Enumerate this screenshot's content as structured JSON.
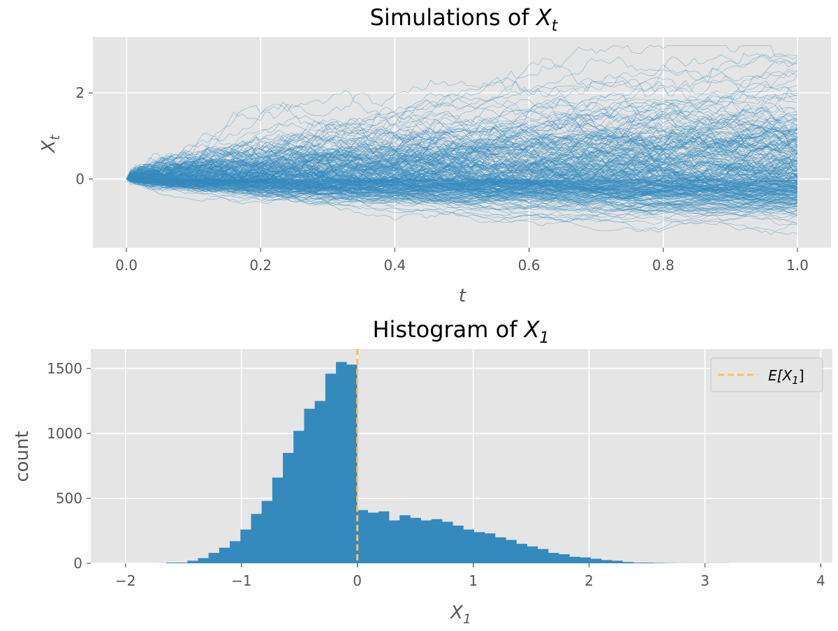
{
  "chart_data": [
    {
      "type": "line",
      "title_text": "Simulations of ",
      "title_var": "X",
      "title_sub": "t",
      "xlabel": "t",
      "ylabel_var": "X",
      "ylabel_sub": "t",
      "xlim": [
        -0.05,
        1.05
      ],
      "ylim": [
        -1.6,
        3.3
      ],
      "xticks": [
        "0.0",
        "0.2",
        "0.4",
        "0.6",
        "0.8",
        "1.0"
      ],
      "xtick_values": [
        0,
        0.2,
        0.4,
        0.6,
        0.8,
        1.0
      ],
      "yticks": [
        "0",
        "2"
      ],
      "ytick_values": [
        0,
        2
      ],
      "grid": true,
      "line_color": "#348ABD",
      "t_range": [
        0,
        1
      ],
      "y_start": 0,
      "y_end_range": [
        -1.4,
        3.1
      ]
    },
    {
      "type": "bar",
      "title_text": "Histogram of ",
      "title_var": "X",
      "title_sub": "1",
      "xlabel_var": "X",
      "xlabel_sub": "1",
      "ylabel": "count",
      "xlim": [
        -2.3,
        4.1
      ],
      "ylim": [
        0,
        1650
      ],
      "xticks": [
        "−2",
        "−1",
        "0",
        "1",
        "2",
        "3",
        "4"
      ],
      "xtick_values": [
        -2,
        -1,
        0,
        1,
        2,
        3,
        4
      ],
      "yticks": [
        "0",
        "500",
        "1000",
        "1500"
      ],
      "ytick_values": [
        0,
        500,
        1000,
        1500
      ],
      "grid": true,
      "bar_color": "#348ABD",
      "bin_start": -1.65,
      "bin_width": 0.0916,
      "values": [
        5,
        5,
        20,
        40,
        80,
        120,
        170,
        260,
        380,
        480,
        660,
        850,
        1020,
        1190,
        1250,
        1460,
        1550,
        1530,
        410,
        390,
        400,
        330,
        370,
        350,
        330,
        340,
        320,
        290,
        260,
        240,
        230,
        200,
        180,
        150,
        130,
        110,
        80,
        70,
        50,
        45,
        35,
        25,
        20,
        10,
        5,
        5,
        3,
        2,
        1,
        1,
        1,
        1,
        1
      ],
      "vline": {
        "x": 0,
        "color": "#FBC15E",
        "label_var": "E[X",
        "label_sub": "1",
        "label_end": "]"
      },
      "legend_position": "top-right"
    }
  ]
}
